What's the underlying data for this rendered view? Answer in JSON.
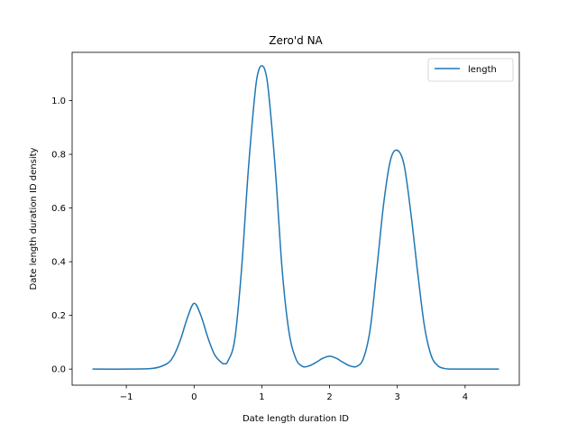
{
  "chart_data": {
    "type": "line",
    "title": "Zero'd NA",
    "xlabel": "Date length duration ID",
    "ylabel": "Date length duration ID density",
    "xlim": [
      -1.8,
      4.8
    ],
    "ylim": [
      -0.06,
      1.18
    ],
    "xticks": [
      -1,
      0,
      1,
      2,
      3,
      4
    ],
    "xtick_labels": [
      "−1",
      "0",
      "1",
      "2",
      "3",
      "4"
    ],
    "yticks": [
      0.0,
      0.2,
      0.4,
      0.6,
      0.8,
      1.0
    ],
    "ytick_labels": [
      "0.0",
      "0.2",
      "0.4",
      "0.6",
      "0.8",
      "1.0"
    ],
    "grid": false,
    "legend_position": "top-right",
    "series": [
      {
        "name": "length",
        "color": "#1f77b4",
        "x": [
          -1.5,
          -1.0,
          -0.6,
          -0.4,
          -0.3,
          -0.2,
          -0.1,
          0.0,
          0.1,
          0.2,
          0.3,
          0.4,
          0.45,
          0.5,
          0.6,
          0.7,
          0.8,
          0.9,
          0.95,
          1.0,
          1.05,
          1.1,
          1.2,
          1.3,
          1.4,
          1.5,
          1.6,
          1.7,
          1.8,
          1.9,
          2.0,
          2.1,
          2.2,
          2.3,
          2.4,
          2.5,
          2.6,
          2.7,
          2.8,
          2.9,
          3.0,
          3.1,
          3.2,
          3.3,
          3.4,
          3.5,
          3.6,
          3.7,
          3.8,
          4.0,
          4.5
        ],
        "y": [
          0.0,
          0.0,
          0.003,
          0.02,
          0.05,
          0.11,
          0.19,
          0.245,
          0.2,
          0.12,
          0.055,
          0.025,
          0.02,
          0.03,
          0.11,
          0.37,
          0.74,
          1.03,
          1.11,
          1.13,
          1.11,
          1.03,
          0.74,
          0.37,
          0.14,
          0.04,
          0.01,
          0.012,
          0.025,
          0.04,
          0.048,
          0.04,
          0.025,
          0.012,
          0.01,
          0.04,
          0.15,
          0.38,
          0.62,
          0.78,
          0.815,
          0.76,
          0.58,
          0.36,
          0.16,
          0.05,
          0.012,
          0.002,
          0.0,
          0.0,
          0.0
        ]
      }
    ]
  }
}
